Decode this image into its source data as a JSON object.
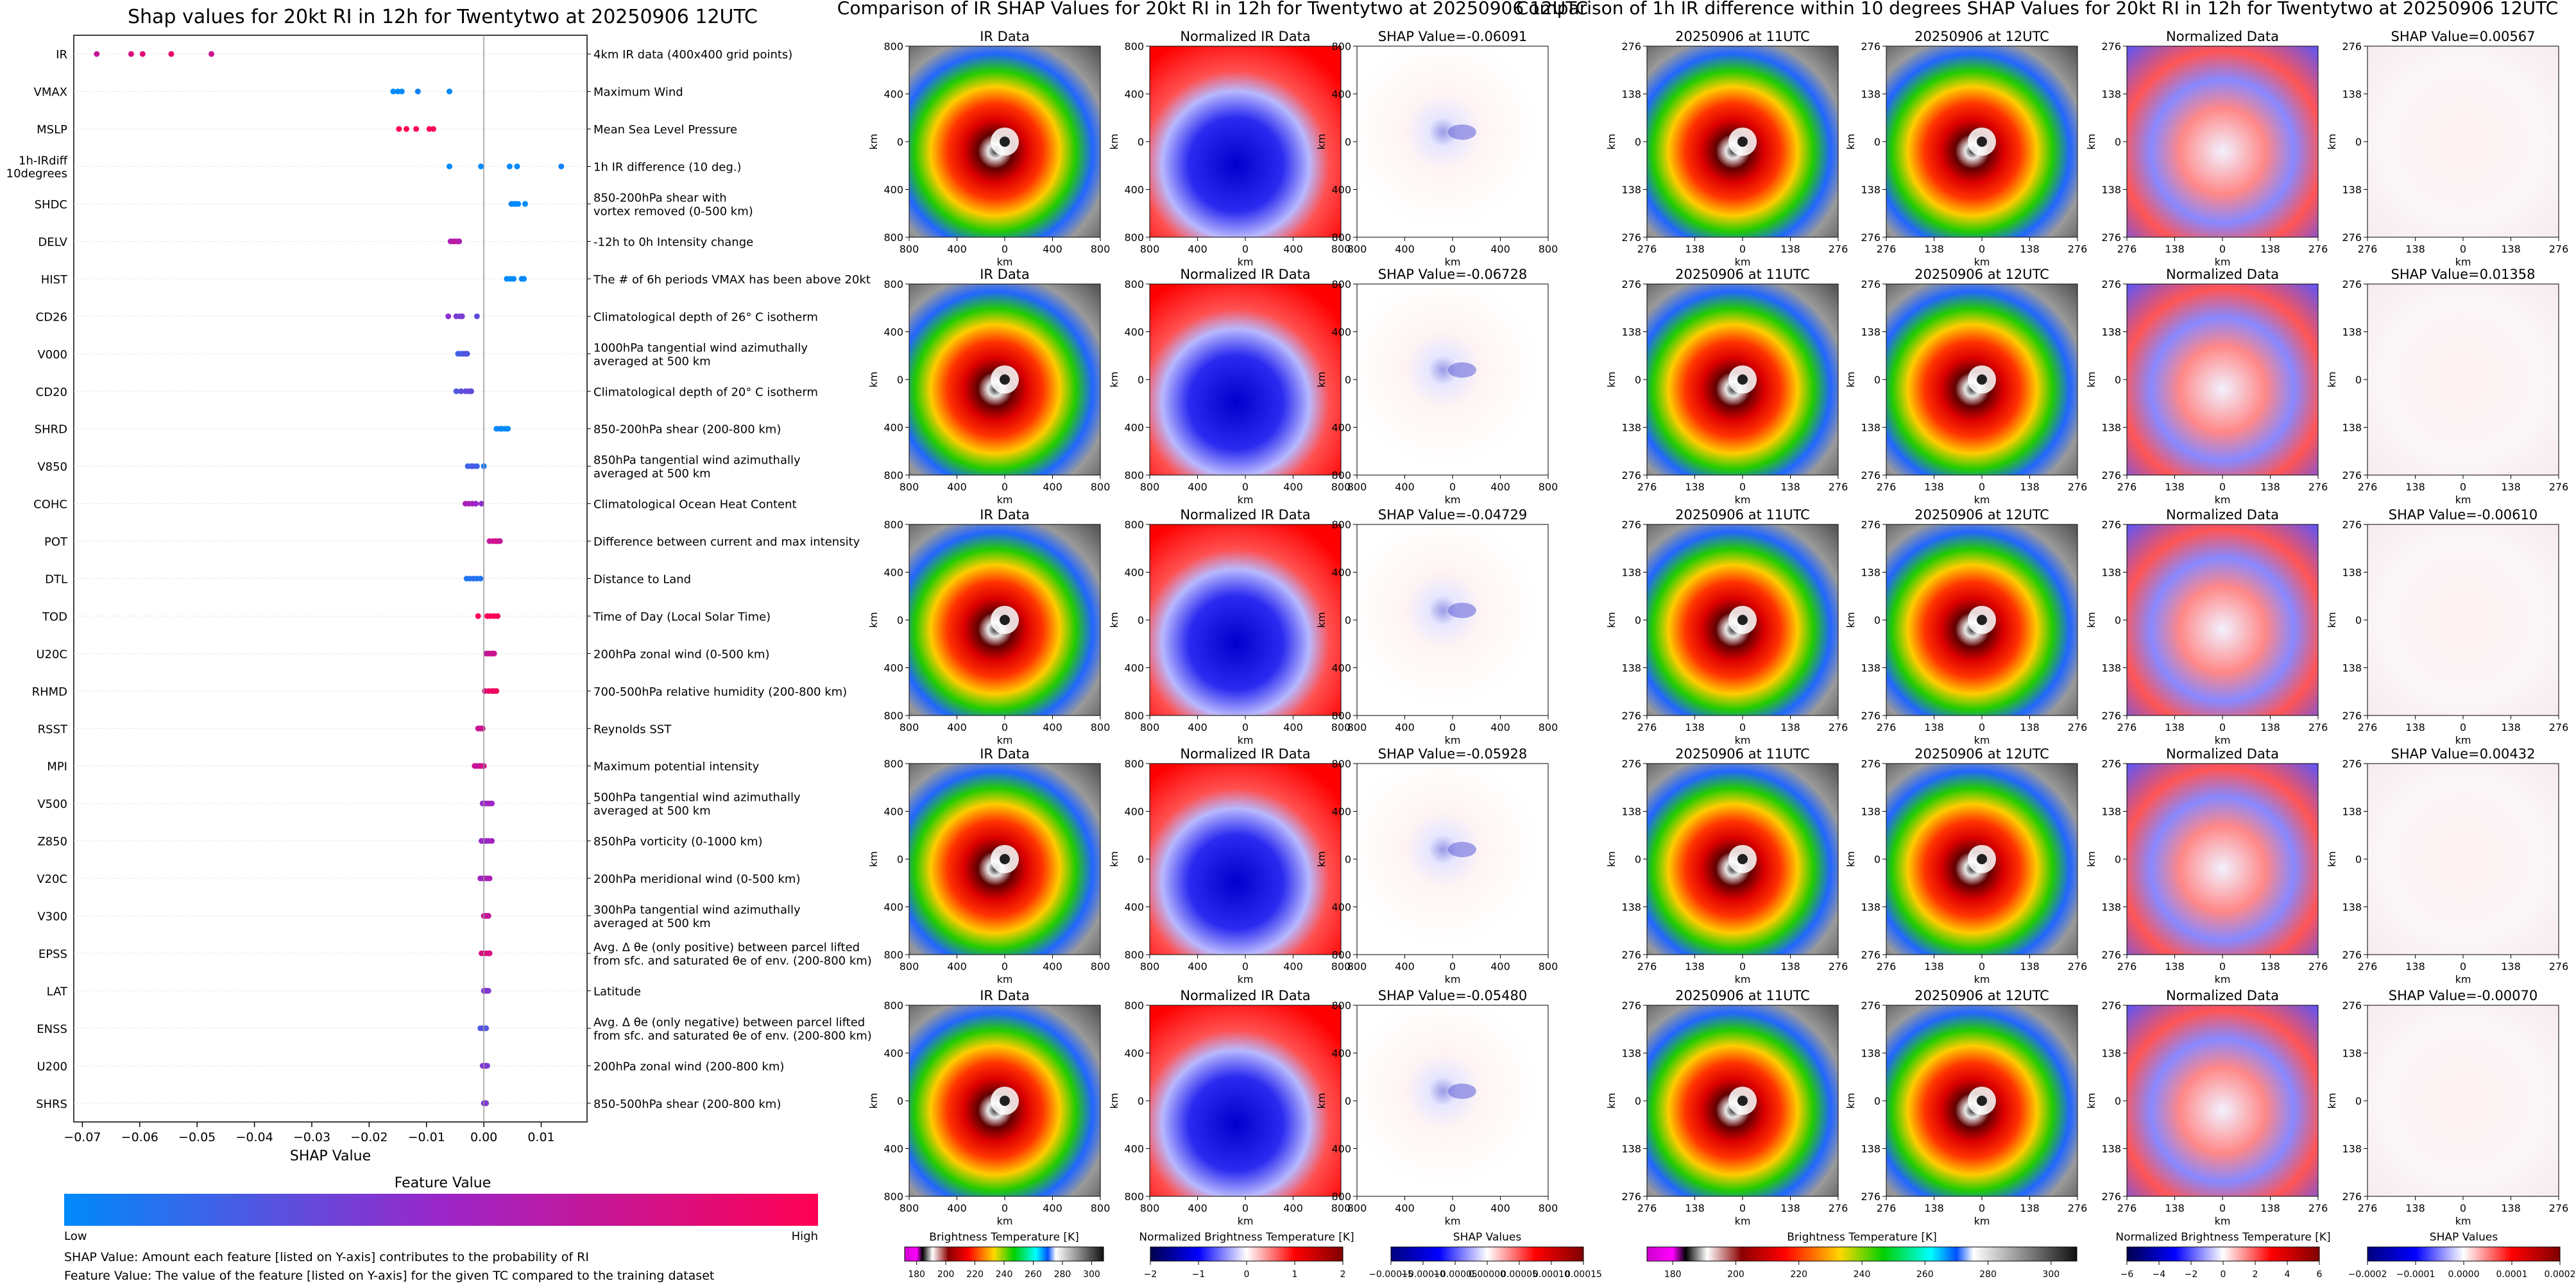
{
  "shap_panel": {
    "title": "Shap values for 20kt RI in 12h for Twentytwo at 20250906 12UTC",
    "xlabel": "SHAP Value",
    "xticks": [
      "−0.07",
      "−0.06",
      "−0.05",
      "−0.04",
      "−0.03",
      "−0.02",
      "−0.01",
      "0.00",
      "0.01"
    ],
    "colorbar_title": "Feature Value",
    "colorbar_low": "Low",
    "colorbar_high": "High",
    "note1": "SHAP Value: Amount each feature [listed on Y-axis] contributes to the probability of RI",
    "note2": "Feature Value: The value of the feature [listed on Y-axis] for the given TC compared to the training dataset"
  },
  "ir_section_title": "Comparison of IR SHAP Values for 20kt RI in 12h for Twentytwo at 20250906 12UTC",
  "diff_section_title": "Comparison of 1h IR difference within 10 degrees SHAP Values for 20kt RI in 12h for Twentytwo at 20250906 12UTC",
  "map_axis_label": "km",
  "ir_ticks_y": [
    "800",
    "400",
    "0",
    "400",
    "800"
  ],
  "ir_ticks_x": [
    "800",
    "400",
    "0",
    "400",
    "800"
  ],
  "diff_ticks": [
    "276",
    "138",
    "0",
    "138",
    "276"
  ],
  "column_titles": {
    "ir": "IR Data",
    "norm_ir": "Normalized IR Data",
    "t11": "20250906 at 11UTC",
    "t12": "20250906 at 12UTC",
    "norm": "Normalized Data"
  },
  "ir_shap_titles": [
    "SHAP Value=-0.06091",
    "SHAP Value=-0.06728",
    "SHAP Value=-0.04729",
    "SHAP Value=-0.05928",
    "SHAP Value=-0.05480"
  ],
  "diff_shap_titles": [
    "SHAP Value=0.00567",
    "SHAP Value=0.01358",
    "SHAP Value=-0.00610",
    "SHAP Value=0.00432",
    "SHAP Value=-0.00070"
  ],
  "colorbars": [
    {
      "label": "Brightness Temperature [K]",
      "ticks": [
        "180",
        "200",
        "220",
        "240",
        "260",
        "280",
        "300"
      ]
    },
    {
      "label": "Normalized Brightness Temperature [K]",
      "ticks": [
        "−2",
        "−1",
        "0",
        "1",
        "2"
      ]
    },
    {
      "label": "SHAP Values",
      "ticks": [
        "−0.00015",
        "−0.00010",
        "−0.00005",
        "0.00000",
        "0.00005",
        "0.00010",
        "0.00015"
      ]
    },
    {
      "label": "Brightness Temperature [K]",
      "ticks": [
        "180",
        "200",
        "220",
        "240",
        "260",
        "280",
        "300"
      ]
    },
    {
      "label": "Normalized Brightness Temperature [K]",
      "ticks": [
        "−6",
        "−4",
        "−2",
        "0",
        "2",
        "4",
        "6"
      ]
    },
    {
      "label": "SHAP Values",
      "ticks": [
        "−0.0002",
        "−0.0001",
        "0.0000",
        "0.0001",
        "0.0002"
      ]
    }
  ],
  "colors": {
    "low": "#008afb",
    "mid": "#9b26c9",
    "high": "#ff0052"
  },
  "chart_data": {
    "type": "scatter",
    "title": "Shap values for 20kt RI in 12h for Twentytwo at 20250906 12UTC",
    "xlabel": "SHAP Value",
    "xlim": [
      -0.0715,
      0.018
    ],
    "legend": "colorbar-bottom",
    "features": [
      {
        "code": "IR",
        "desc": "4km IR data (400x400 grid points)",
        "points": [
          [
            -0.0675,
            0.7
          ],
          [
            -0.0615,
            0.8
          ],
          [
            -0.0595,
            0.85
          ],
          [
            -0.0545,
            0.9
          ],
          [
            -0.0475,
            0.75
          ]
        ]
      },
      {
        "code": "VMAX",
        "desc": "Maximum Wind",
        "points": [
          [
            -0.0158,
            0
          ],
          [
            -0.015,
            0
          ],
          [
            -0.0143,
            0
          ],
          [
            -0.0115,
            0.05
          ],
          [
            -0.006,
            0
          ]
        ]
      },
      {
        "code": "MSLP",
        "desc": "Mean Sea Level Pressure",
        "points": [
          [
            -0.0148,
            1
          ],
          [
            -0.0135,
            1
          ],
          [
            -0.0118,
            1
          ],
          [
            -0.0095,
            1
          ],
          [
            -0.0088,
            0.95
          ]
        ]
      },
      {
        "code": "1h-IRdiff\n10degrees",
        "desc": "1h IR difference (10 deg.)",
        "points": [
          [
            -0.006,
            0
          ],
          [
            -0.0005,
            0
          ],
          [
            0.0045,
            0
          ],
          [
            0.0058,
            0
          ],
          [
            0.0135,
            0.05
          ]
        ]
      },
      {
        "code": "SHDC",
        "desc": "850-200hPa shear with\nvortex removed (0-500 km)",
        "points": [
          [
            0.0048,
            0.05
          ],
          [
            0.0052,
            0
          ],
          [
            0.0056,
            0
          ],
          [
            0.006,
            0
          ],
          [
            0.0072,
            0
          ]
        ]
      },
      {
        "code": "DELV",
        "desc": "-12h to 0h Intensity change",
        "points": [
          [
            -0.0058,
            0.6
          ],
          [
            -0.0054,
            0.6
          ],
          [
            -0.005,
            0.7
          ],
          [
            -0.0046,
            0.65
          ],
          [
            -0.0043,
            0.6
          ]
        ]
      },
      {
        "code": "HIST",
        "desc": "The # of 6h periods VMAX has been above 20kt",
        "points": [
          [
            0.004,
            0
          ],
          [
            0.0046,
            0
          ],
          [
            0.0052,
            0
          ],
          [
            0.0066,
            0.02
          ],
          [
            0.007,
            0
          ]
        ]
      },
      {
        "code": "CD26",
        "desc": "Climatological depth of 26° C isotherm",
        "points": [
          [
            -0.0062,
            0.45
          ],
          [
            -0.0048,
            0.4
          ],
          [
            -0.0042,
            0.35
          ],
          [
            -0.0038,
            0.4
          ],
          [
            -0.0012,
            0.3
          ]
        ]
      },
      {
        "code": "V000",
        "desc": "1000hPa tangential wind azimuthally\naveraged at 500 km",
        "points": [
          [
            -0.0045,
            0.2
          ],
          [
            -0.004,
            0.25
          ],
          [
            -0.0036,
            0.2
          ],
          [
            -0.0032,
            0.3
          ],
          [
            -0.0029,
            0.25
          ]
        ]
      },
      {
        "code": "CD20",
        "desc": "Climatological depth of 20° C isotherm",
        "points": [
          [
            -0.0048,
            0.25
          ],
          [
            -0.004,
            0.3
          ],
          [
            -0.0032,
            0.3
          ],
          [
            -0.0026,
            0.35
          ],
          [
            -0.0022,
            0.3
          ]
        ]
      },
      {
        "code": "SHRD",
        "desc": "850-200hPa shear (200-800 km)",
        "points": [
          [
            0.0022,
            0
          ],
          [
            0.0028,
            0.05
          ],
          [
            0.0032,
            0
          ],
          [
            0.0038,
            0
          ],
          [
            0.0042,
            0
          ]
        ]
      },
      {
        "code": "V850",
        "desc": "850hPa tangential wind azimuthally\naveraged at 500 km",
        "points": [
          [
            -0.0028,
            0.2
          ],
          [
            -0.0022,
            0.2
          ],
          [
            -0.0018,
            0.25
          ],
          [
            -0.0012,
            0.2
          ],
          [
            0.0,
            0.1
          ]
        ]
      },
      {
        "code": "COHC",
        "desc": "Climatological Ocean Heat Content",
        "points": [
          [
            -0.0032,
            0.6
          ],
          [
            -0.0026,
            0.55
          ],
          [
            -0.002,
            0.55
          ],
          [
            -0.0014,
            0.5
          ],
          [
            -0.0004,
            0.45
          ]
        ]
      },
      {
        "code": "POT",
        "desc": "Difference between current and max intensity",
        "points": [
          [
            0.001,
            0.7
          ],
          [
            0.0016,
            0.75
          ],
          [
            0.002,
            0.75
          ],
          [
            0.0024,
            0.8
          ],
          [
            0.0028,
            0.7
          ]
        ]
      },
      {
        "code": "DTL",
        "desc": "Distance to Land",
        "points": [
          [
            -0.003,
            0.1
          ],
          [
            -0.0024,
            0.1
          ],
          [
            -0.0018,
            0.15
          ],
          [
            -0.0012,
            0.1
          ],
          [
            -0.0006,
            0.1
          ]
        ]
      },
      {
        "code": "TOD",
        "desc": "Time of Day (Local Solar Time)",
        "points": [
          [
            -0.001,
            1
          ],
          [
            0.0006,
            1
          ],
          [
            0.0012,
            1
          ],
          [
            0.0018,
            1
          ],
          [
            0.0024,
            0.95
          ]
        ]
      },
      {
        "code": "U20C",
        "desc": "200hPa zonal wind (0-500 km)",
        "points": [
          [
            0.0004,
            0.7
          ],
          [
            0.0008,
            0.7
          ],
          [
            0.0012,
            0.75
          ],
          [
            0.0015,
            0.7
          ],
          [
            0.0018,
            0.75
          ]
        ]
      },
      {
        "code": "RHMD",
        "desc": "700-500hPa relative humidity (200-800 km)",
        "points": [
          [
            0.0002,
            0.8
          ],
          [
            0.0008,
            0.9
          ],
          [
            0.0014,
            0.95
          ],
          [
            0.0018,
            0.9
          ],
          [
            0.0022,
            0.95
          ]
        ]
      },
      {
        "code": "RSST",
        "desc": "Reynolds SST",
        "points": [
          [
            -0.001,
            0.7
          ],
          [
            -0.0008,
            0.75
          ],
          [
            -0.0006,
            0.75
          ],
          [
            -0.0004,
            0.7
          ],
          [
            -0.0002,
            0.75
          ]
        ]
      },
      {
        "code": "MPI",
        "desc": "Maximum potential intensity",
        "points": [
          [
            -0.0016,
            0.75
          ],
          [
            -0.0012,
            0.7
          ],
          [
            -0.0008,
            0.7
          ],
          [
            -0.0004,
            0.8
          ],
          [
            0.0,
            0.75
          ]
        ]
      },
      {
        "code": "V500",
        "desc": "500hPa tangential wind azimuthally\naveraged at 500 km",
        "points": [
          [
            -0.0002,
            0.5
          ],
          [
            0.0002,
            0.5
          ],
          [
            0.0006,
            0.5
          ],
          [
            0.001,
            0.55
          ],
          [
            0.0014,
            0.5
          ]
        ]
      },
      {
        "code": "Z850",
        "desc": "850hPa vorticity (0-1000 km)",
        "points": [
          [
            -0.0004,
            0.5
          ],
          [
            0.0,
            0.5
          ],
          [
            0.0004,
            0.5
          ],
          [
            0.0008,
            0.5
          ],
          [
            0.0014,
            0.55
          ]
        ]
      },
      {
        "code": "V20C",
        "desc": "200hPa meridional wind (0-500 km)",
        "points": [
          [
            -0.0006,
            0.55
          ],
          [
            -0.0002,
            0.5
          ],
          [
            0.0002,
            0.6
          ],
          [
            0.0006,
            0.55
          ],
          [
            0.001,
            0.6
          ]
        ]
      },
      {
        "code": "V300",
        "desc": "300hPa tangential wind azimuthally\naveraged at 500 km",
        "points": [
          [
            0.0,
            0.7
          ],
          [
            0.0002,
            0.7
          ],
          [
            0.0004,
            0.75
          ],
          [
            0.0006,
            0.7
          ],
          [
            0.0008,
            0.7
          ]
        ]
      },
      {
        "code": "EPSS",
        "desc": "Avg. Δ θe (only positive) between parcel lifted\nfrom sfc. and saturated θe of env. (200-800 km)",
        "points": [
          [
            -0.0004,
            0.8
          ],
          [
            0.0,
            0.8
          ],
          [
            0.0004,
            0.85
          ],
          [
            0.0008,
            0.8
          ],
          [
            0.001,
            0.8
          ]
        ]
      },
      {
        "code": "LAT",
        "desc": "Latitude",
        "points": [
          [
            0.0,
            0.4
          ],
          [
            0.0002,
            0.45
          ],
          [
            0.0004,
            0.4
          ],
          [
            0.0006,
            0.45
          ],
          [
            0.0008,
            0.4
          ]
        ]
      },
      {
        "code": "ENSS",
        "desc": "Avg. Δ θe (only negative) between parcel lifted\nfrom sfc. and saturated θe of env. (200-800 km)",
        "points": [
          [
            -0.0006,
            0.25
          ],
          [
            -0.0002,
            0.3
          ],
          [
            0.0,
            0.25
          ],
          [
            0.0002,
            0.3
          ],
          [
            0.0004,
            0.25
          ]
        ]
      },
      {
        "code": "U200",
        "desc": "200hPa zonal wind (200-800 km)",
        "points": [
          [
            -0.0002,
            0.4
          ],
          [
            0.0,
            0.45
          ],
          [
            0.0002,
            0.4
          ],
          [
            0.0004,
            0.45
          ],
          [
            0.0006,
            0.4
          ]
        ]
      },
      {
        "code": "SHRS",
        "desc": "850-500hPa shear (200-800 km)",
        "points": [
          [
            0.0,
            0.4
          ],
          [
            0.0001,
            0.45
          ],
          [
            0.0002,
            0.4
          ],
          [
            0.0003,
            0.45
          ],
          [
            0.0004,
            0.4
          ]
        ]
      }
    ]
  }
}
